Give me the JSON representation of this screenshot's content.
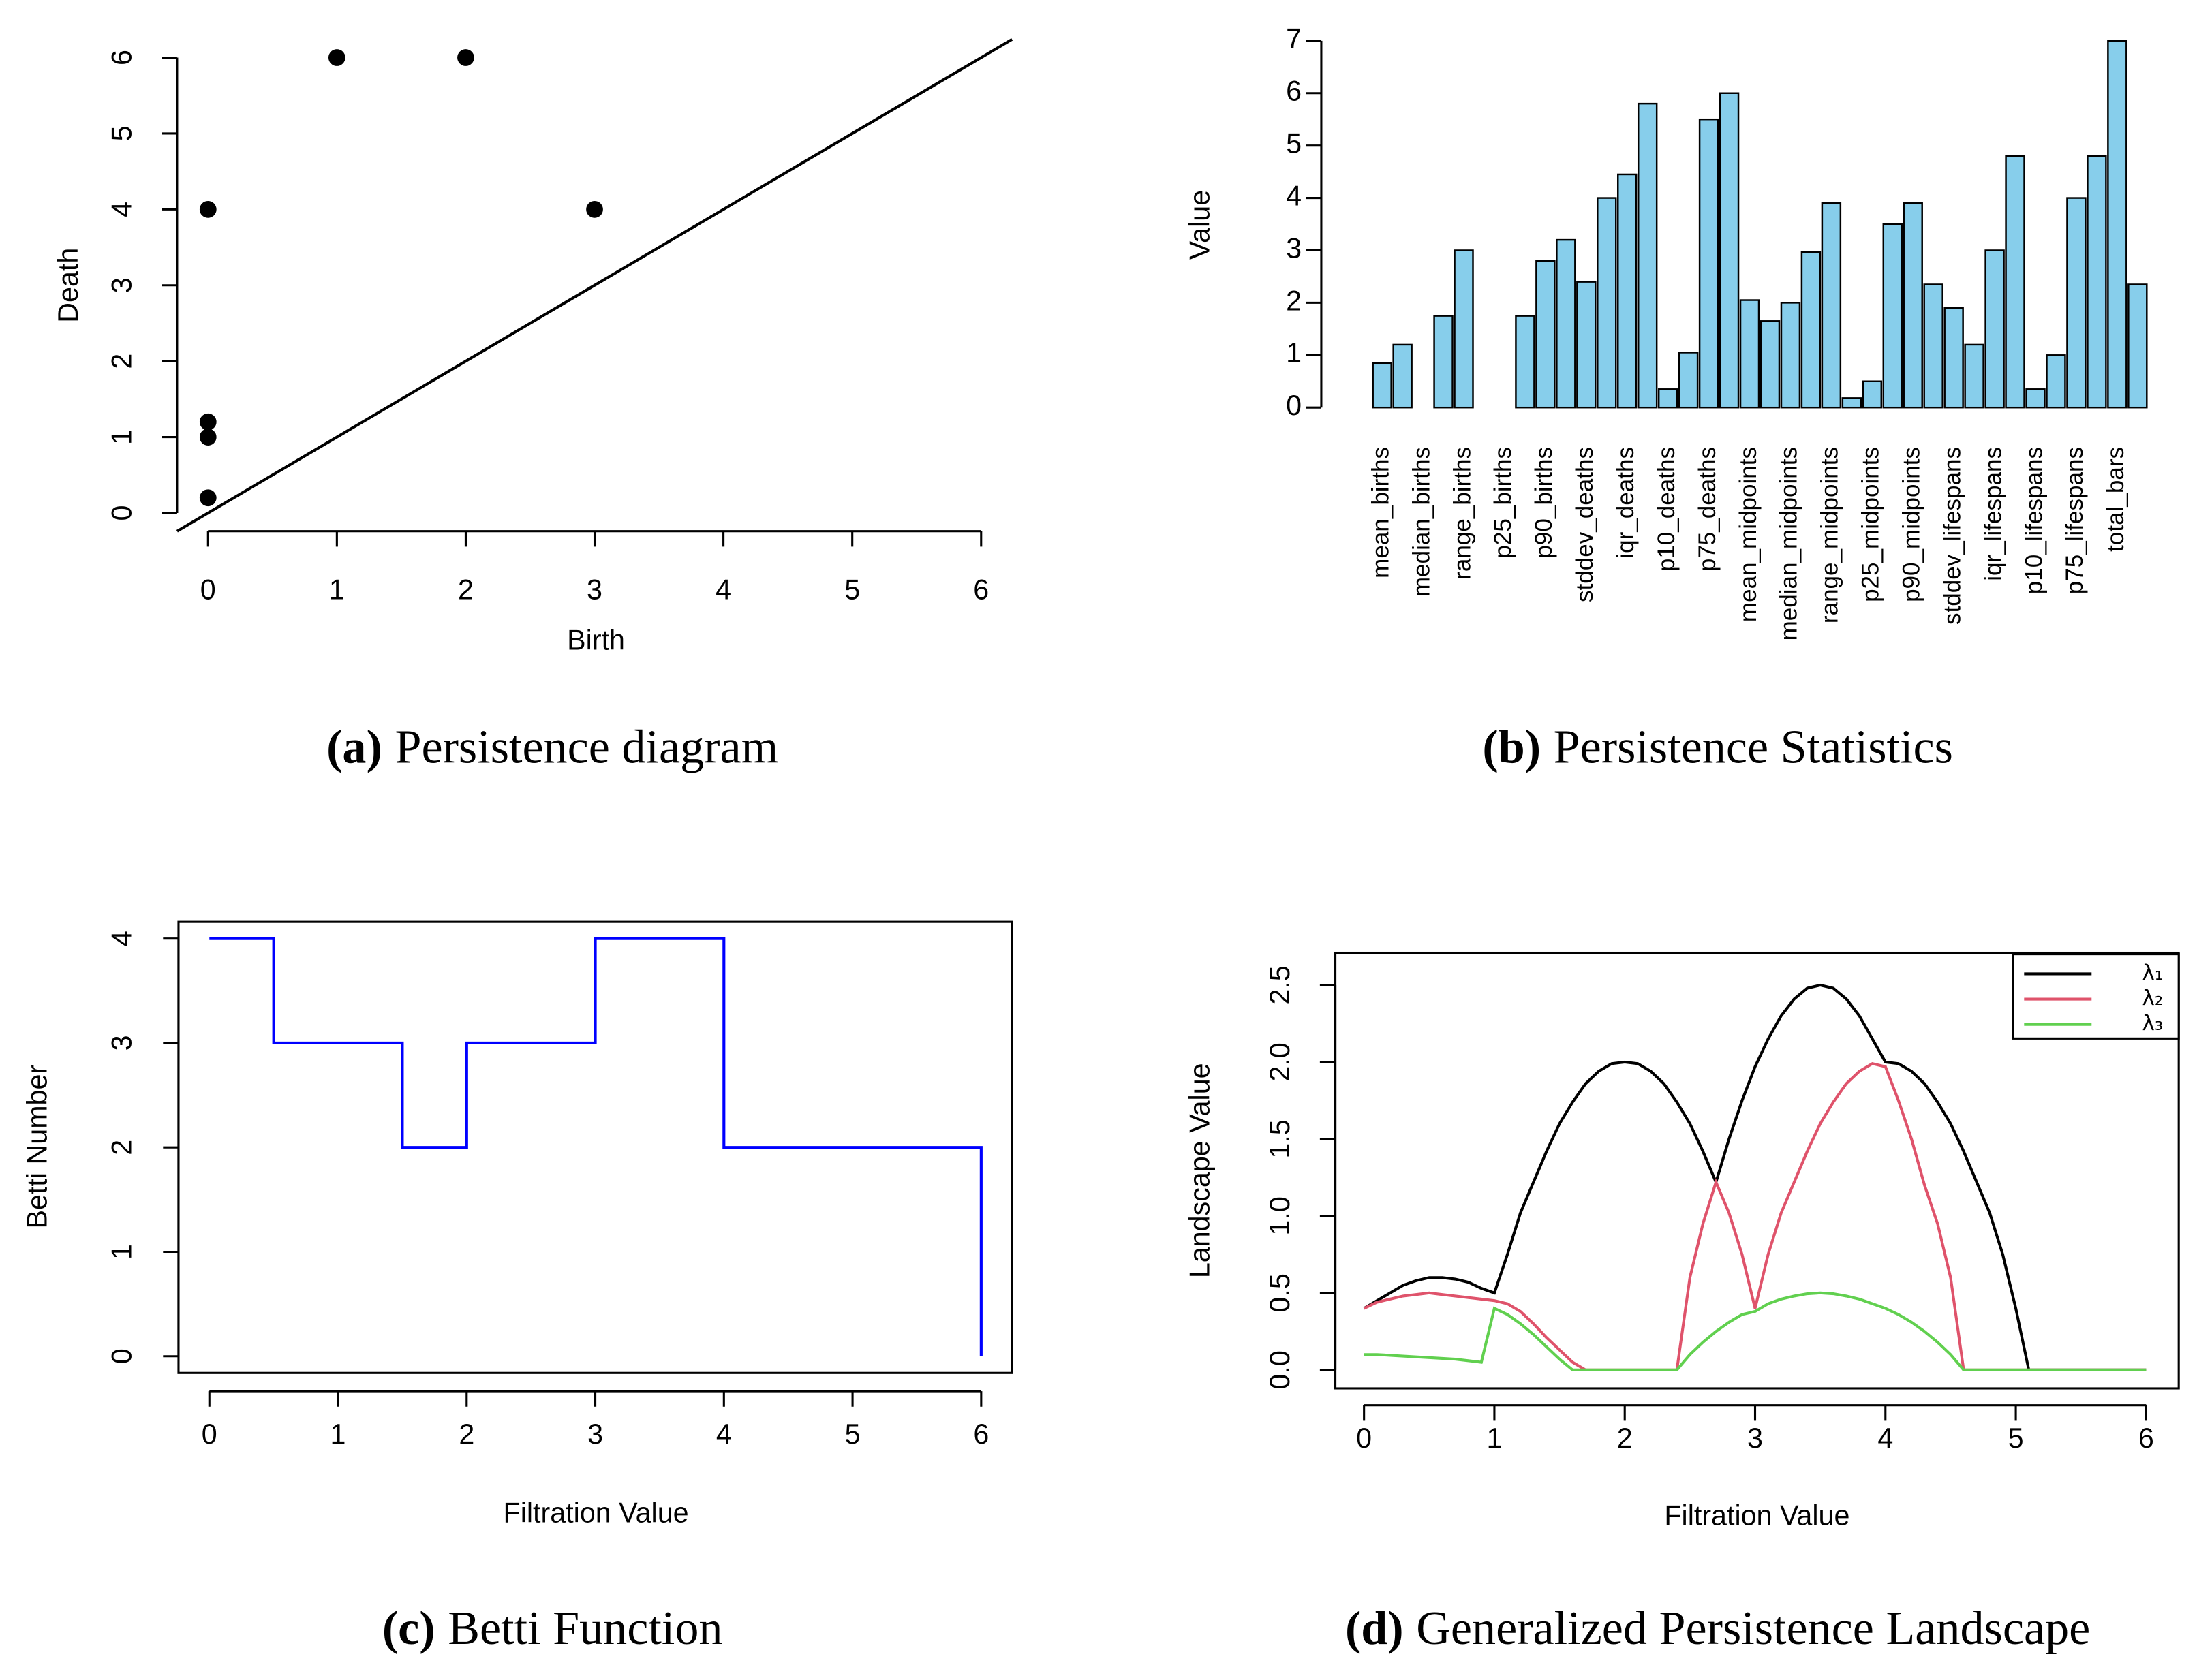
{
  "chart_data": [
    {
      "type": "scatter",
      "caption_label": "(a)",
      "caption": "Persistence diagram",
      "xlabel": "Birth",
      "ylabel": "Death",
      "x": [
        0,
        0,
        0,
        0,
        1,
        2,
        3
      ],
      "values": [
        0.2,
        1,
        1.2,
        4,
        6,
        6,
        4
      ],
      "color": "#000000",
      "diagonal": true,
      "xlim": [
        -0.24,
        6.24
      ],
      "ylim": [
        -0.24,
        6.24
      ],
      "xticks": [
        0,
        1,
        2,
        3,
        4,
        5,
        6
      ],
      "yticks": [
        0,
        1,
        2,
        3,
        4,
        5,
        6
      ]
    },
    {
      "type": "bar",
      "caption_label": "(b)",
      "caption": "Persistence Statistics",
      "ylabel": "Value",
      "categories": [
        "mean_births",
        null,
        "median_births",
        null,
        "range_births",
        null,
        "p25_births",
        null,
        "p90_births",
        null,
        "stddev_deaths",
        null,
        "iqr_deaths",
        null,
        "p10_deaths",
        null,
        "p75_deaths",
        null,
        "mean_midpoints",
        null,
        "median_midpoints",
        null,
        "range_midpoints",
        null,
        "p25_midpoints",
        null,
        "p90_midpoints",
        null,
        "stddev_lifespans",
        null,
        "iqr_lifespans",
        null,
        "p10_lifespans",
        null,
        "p75_lifespans",
        null,
        "total_bars",
        null
      ],
      "values": [
        0.85,
        1.2,
        0,
        1.75,
        3.0,
        0,
        0,
        1.75,
        2.8,
        3.2,
        2.4,
        4.0,
        4.45,
        5.8,
        0.35,
        1.05,
        5.5,
        6.0,
        2.05,
        1.65,
        2.0,
        2.97,
        3.9,
        0.18,
        0.5,
        3.5,
        3.9,
        2.35,
        1.9,
        1.2,
        3.0,
        4.8,
        0.35,
        1.0,
        4.0,
        4.8,
        7.0,
        2.35
      ],
      "color": "#87ceeb",
      "ylim": [
        0,
        7
      ],
      "yticks": [
        0,
        1,
        2,
        3,
        4,
        5,
        6,
        7
      ]
    },
    {
      "type": "line",
      "caption_label": "(c)",
      "caption": "Betti Function",
      "xlabel": "Filtration Value",
      "ylabel": "Betti Number",
      "x": [
        0,
        0.5,
        0.5,
        1.5,
        1.5,
        2,
        2,
        3,
        3,
        4,
        4,
        6,
        6
      ],
      "values": [
        4,
        4,
        3,
        3,
        2,
        2,
        3,
        3,
        4,
        4,
        2,
        2,
        0
      ],
      "color": "#0000ff",
      "xlim": [
        -0.24,
        6.24
      ],
      "ylim": [
        -0.16,
        4.16
      ],
      "xticks": [
        0,
        1,
        2,
        3,
        4,
        5,
        6
      ],
      "yticks": [
        0,
        1,
        2,
        3,
        4
      ]
    },
    {
      "type": "line",
      "caption_label": "(d)",
      "caption": "Generalized Persistence Landscape",
      "xlabel": "Filtration Value",
      "ylabel": "Landscape Value",
      "x": [
        0,
        0.1,
        0.2,
        0.3,
        0.4,
        0.5,
        0.6,
        0.7,
        0.8,
        0.9,
        1.0,
        1.1,
        1.2,
        1.3,
        1.4,
        1.5,
        1.6,
        1.7,
        1.8,
        1.9,
        2.0,
        2.1,
        2.2,
        2.3,
        2.4,
        2.5,
        2.6,
        2.7,
        2.8,
        2.9,
        3.0,
        3.1,
        3.2,
        3.3,
        3.4,
        3.5,
        3.6,
        3.7,
        3.8,
        3.9,
        4.0,
        4.1,
        4.2,
        4.3,
        4.4,
        4.5,
        4.6,
        4.7,
        4.8,
        4.9,
        5.0,
        5.1,
        5.2,
        5.3,
        5.4,
        5.5,
        5.6,
        5.7,
        5.8,
        5.9,
        6.0
      ],
      "series": [
        {
          "name": "λ₁",
          "color": "#000000",
          "values": [
            0.4,
            0.45,
            0.5,
            0.55,
            0.58,
            0.6,
            0.6,
            0.59,
            0.57,
            0.53,
            0.5,
            0.75,
            1.02,
            1.22,
            1.42,
            1.6,
            1.74,
            1.86,
            1.94,
            1.99,
            2.0,
            1.99,
            1.94,
            1.86,
            1.74,
            1.6,
            1.42,
            1.22,
            1.5,
            1.75,
            1.97,
            2.15,
            2.3,
            2.41,
            2.48,
            2.5,
            2.48,
            2.41,
            2.3,
            2.15,
            2.0,
            1.99,
            1.94,
            1.86,
            1.74,
            1.6,
            1.42,
            1.22,
            1.02,
            0.75,
            0.4,
            0,
            0,
            0,
            0,
            0,
            0,
            0,
            0,
            0,
            0
          ]
        },
        {
          "name": "λ₂",
          "color": "#df536b",
          "values": [
            0.4,
            0.44,
            0.46,
            0.48,
            0.49,
            0.5,
            0.49,
            0.48,
            0.47,
            0.46,
            0.45,
            0.43,
            0.38,
            0.3,
            0.21,
            0.13,
            0.05,
            0,
            0,
            0,
            0,
            0,
            0,
            0,
            0,
            0.6,
            0.95,
            1.22,
            1.02,
            0.75,
            0.4,
            0.75,
            1.02,
            1.22,
            1.42,
            1.6,
            1.74,
            1.86,
            1.94,
            1.99,
            1.97,
            1.75,
            1.5,
            1.2,
            0.95,
            0.6,
            0,
            0,
            0,
            0,
            0,
            0,
            0,
            0,
            0,
            0,
            0,
            0,
            0,
            0,
            0
          ]
        },
        {
          "name": "λ₃",
          "color": "#61d04f",
          "values": [
            0.1,
            0.1,
            0.095,
            0.09,
            0.085,
            0.08,
            0.075,
            0.07,
            0.06,
            0.05,
            0.4,
            0.36,
            0.3,
            0.23,
            0.15,
            0.07,
            0,
            0,
            0,
            0,
            0,
            0,
            0,
            0,
            0,
            0.1,
            0.18,
            0.25,
            0.31,
            0.36,
            0.38,
            0.43,
            0.46,
            0.48,
            0.495,
            0.5,
            0.495,
            0.48,
            0.46,
            0.43,
            0.4,
            0.36,
            0.31,
            0.25,
            0.18,
            0.1,
            0,
            0,
            0,
            0,
            0,
            0,
            0,
            0,
            0,
            0,
            0,
            0,
            0,
            0,
            0
          ]
        }
      ],
      "legend": "topright",
      "xlim": [
        -0.22,
        6.25
      ],
      "ylim": [
        -0.12,
        2.71
      ],
      "xticks": [
        0,
        1,
        2,
        3,
        4,
        5,
        6
      ],
      "yticks": [
        {
          "value": 0,
          "label": "0.0"
        },
        0.5,
        {
          "value": 1,
          "label": "1.0"
        },
        1.5,
        {
          "value": 2,
          "label": "2.0"
        },
        2.5
      ]
    }
  ]
}
